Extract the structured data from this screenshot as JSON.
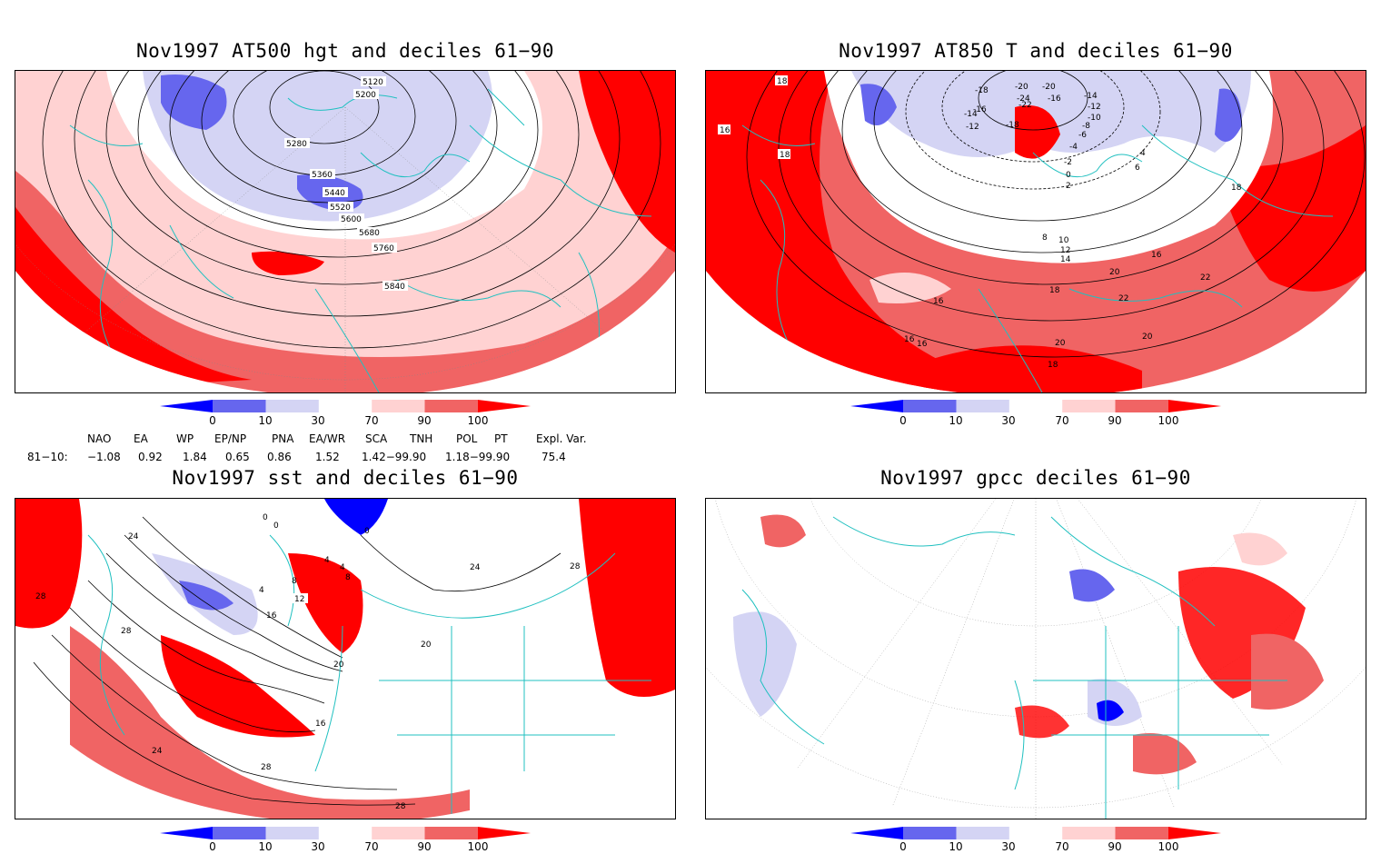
{
  "panels": {
    "p1": {
      "title": "Nov1997 AT500 hgt and deciles 61−90",
      "contour_labels": [
        "5120",
        "5200",
        "5280",
        "5360",
        "5440",
        "5520",
        "5600",
        "5680",
        "5760",
        "5840"
      ]
    },
    "p2": {
      "title": "Nov1997 AT850 T and deciles 61−90",
      "contour_labels": [
        "18",
        "16",
        "18",
        "-20",
        "-20",
        "-18",
        "-16",
        "-14",
        "-12",
        "-10",
        "-8",
        "-6",
        "-4",
        "-2",
        "0",
        "2",
        "4",
        "6",
        "-22",
        "-24",
        "-16",
        "-14",
        "-12",
        "-18",
        "8",
        "10",
        "12",
        "14",
        "16",
        "18",
        "20",
        "22",
        "22",
        "20",
        "16",
        "18",
        "16",
        "16",
        "20",
        "18"
      ]
    },
    "p3": {
      "title": "Nov1997 sst and deciles 61−90",
      "contour_labels": [
        "0",
        "0",
        "0",
        "4",
        "4",
        "8",
        "4",
        "8",
        "12",
        "16",
        "20",
        "20",
        "24",
        "28",
        "28",
        "28",
        "28",
        "28",
        "24",
        "16",
        "24"
      ]
    },
    "p4": {
      "title": "Nov1997 gpcc deciles 61−90",
      "contour_labels": []
    }
  },
  "colorbar": {
    "ticks": [
      "0",
      "10",
      "30",
      "70",
      "90",
      "100"
    ],
    "colors": [
      "#0000ff",
      "#6666ee",
      "#d4d4f4",
      "#ffffff",
      "#ffd2d2",
      "#f06464",
      "#ff0000"
    ]
  },
  "indices": {
    "headers": [
      "NAO",
      "EA",
      "WP",
      "EP/NP",
      "PNA",
      "EA/WR",
      "SCA",
      "TNH",
      "POL",
      "PT",
      "Expl. Var."
    ],
    "row_label": "81−10:",
    "values": [
      "−1.08",
      "0.92",
      "1.84",
      "0.65",
      "0.86",
      "1.52",
      "1.42−99.90",
      "1.18−99.90",
      "75.4"
    ]
  },
  "colors": {
    "coast": "#20c0c0",
    "contour": "#000000",
    "red": "#ff0000",
    "lightred": "#f06464",
    "pink": "#ffd2d2",
    "blue": "#0000ff",
    "midblue": "#6666ee",
    "lightblue": "#d4d4f4"
  }
}
